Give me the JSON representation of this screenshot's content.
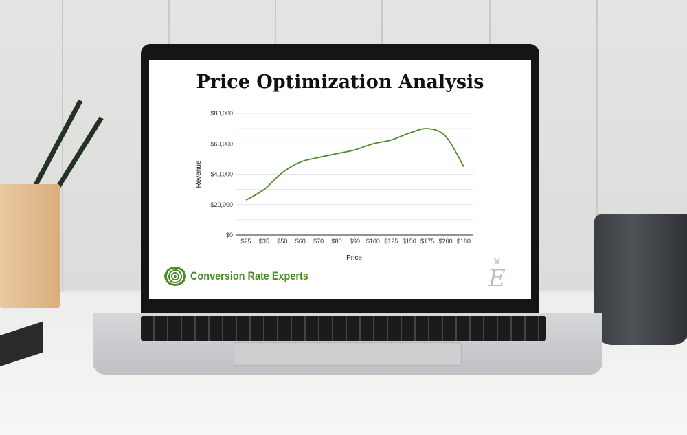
{
  "screen": {
    "title": "Price Optimization Analysis",
    "logo_text": "Conversion Rate Experts",
    "award_emblem": "E"
  },
  "chart_data": {
    "type": "line",
    "title": "Price Optimization Analysis",
    "xlabel": "Price",
    "ylabel": "Revenue",
    "categories": [
      "$25",
      "$35",
      "$50",
      "$60",
      "$70",
      "$80",
      "$90",
      "$100",
      "$125",
      "$150",
      "$175",
      "$200",
      "$180"
    ],
    "values": [
      23000,
      30000,
      41000,
      48000,
      51000,
      53500,
      56000,
      60000,
      62500,
      67000,
      70000,
      65000,
      45000
    ],
    "ylim": [
      0,
      80000
    ],
    "yticks": [
      0,
      20000,
      40000,
      60000,
      80000
    ],
    "ytick_labels": [
      "$0",
      "$20,000",
      "$40,000",
      "$60,000",
      "$80,000"
    ],
    "grid": true,
    "line_color": "#4f8a2a",
    "smooth": true
  }
}
